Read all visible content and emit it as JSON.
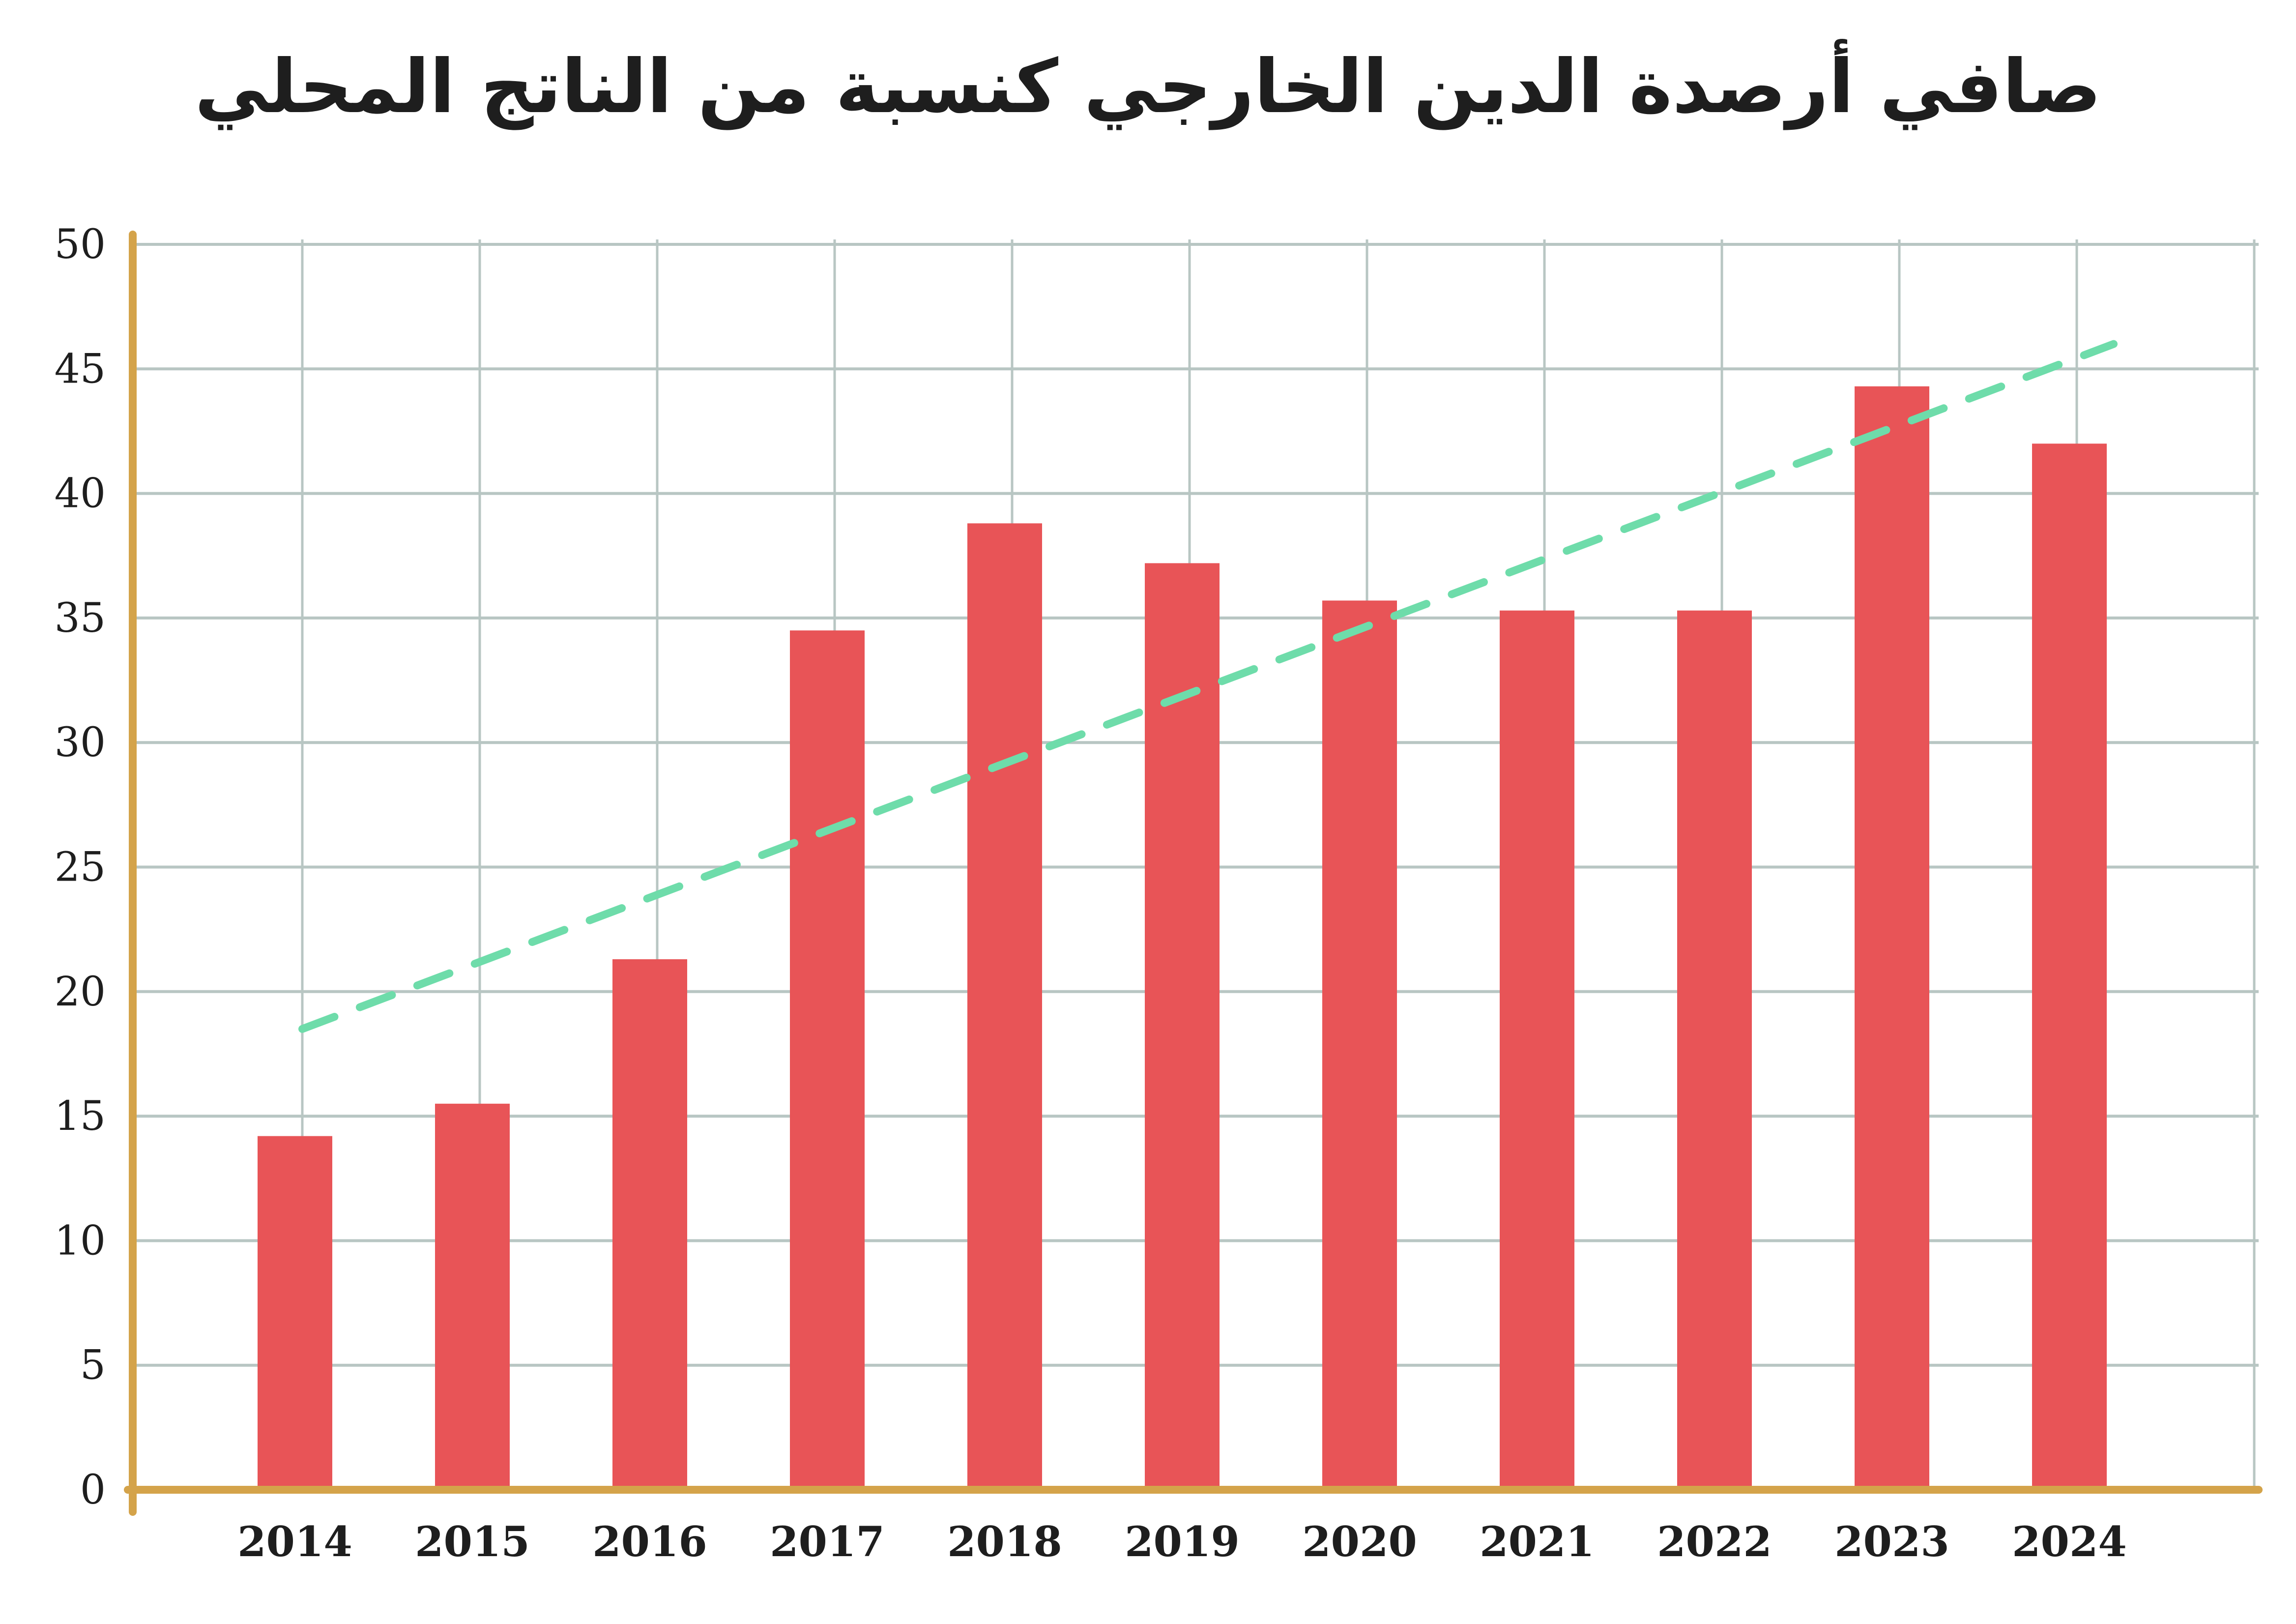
{
  "chart_data": {
    "type": "bar",
    "title": "صافي أرصدة الدين الخارجي كنسبة من الناتج المحلي",
    "xlabel": "",
    "ylabel": "",
    "categories": [
      "2014",
      "2015",
      "2016",
      "2017",
      "2018",
      "2019",
      "2020",
      "2021",
      "2022",
      "2023",
      "2024"
    ],
    "series": [
      {
        "name": "bars",
        "values": [
          14.2,
          15.5,
          21.3,
          34.5,
          38.8,
          37.2,
          35.7,
          35.3,
          35.3,
          44.3,
          42.0
        ],
        "color": "#e85457"
      },
      {
        "name": "trend",
        "type": "line",
        "style": "dashed",
        "values_endpoints": {
          "2014": 18.5,
          "2024": 46.0
        },
        "color": "#6edcaa"
      }
    ],
    "ylim": [
      0,
      50
    ],
    "yticks": [
      0,
      5,
      10,
      15,
      20,
      25,
      30,
      35,
      40,
      45,
      50
    ],
    "grid": true,
    "axis_color": "#d4a34a",
    "grid_color": "#b8c6c3"
  }
}
